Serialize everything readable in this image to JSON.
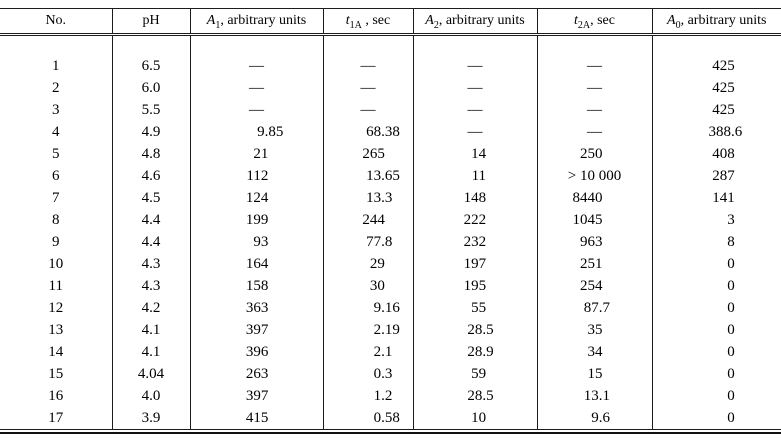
{
  "page": {
    "background": "#ffffff",
    "text_color": "#000000",
    "rule_color": "#1c1c1c"
  },
  "table": {
    "empty_marker": "—",
    "headers": [
      {
        "text": "No."
      },
      {
        "text": "pH"
      },
      {
        "var": "A",
        "sub": "1",
        "tail": ", arbitrary units"
      },
      {
        "var": "t",
        "sub": "1A",
        "tail": " , sec"
      },
      {
        "var": "A",
        "sub": "2",
        "tail": ", arbitrary units"
      },
      {
        "var": "t",
        "sub": "2A",
        "tail": ", sec"
      },
      {
        "var": "A",
        "sub": "0",
        "tail": ", arbitrary units"
      }
    ],
    "rows": [
      [
        "1",
        "6.5",
        "—",
        "—",
        "—",
        "—",
        "425"
      ],
      [
        "2",
        "6.0",
        "—",
        "—",
        "—",
        "—",
        "425"
      ],
      [
        "3",
        "5.5",
        "—",
        "—",
        "—",
        "—",
        "425"
      ],
      [
        "4",
        "4.9",
        "9.85",
        "68.38",
        "—",
        "—",
        "388.6"
      ],
      [
        "5",
        "4.8",
        "21",
        "265",
        "14",
        "250",
        "408"
      ],
      [
        "6",
        "4.6",
        "112",
        "13.65",
        "11",
        "> 10 000",
        "287"
      ],
      [
        "7",
        "4.5",
        "124",
        "13.3",
        "148",
        "8440",
        "141"
      ],
      [
        "8",
        "4.4",
        "199",
        "244",
        "222",
        "1045",
        "3"
      ],
      [
        "9",
        "4.4",
        "93",
        "77.8",
        "232",
        "963",
        "8"
      ],
      [
        "10",
        "4.3",
        "164",
        "29",
        "197",
        "251",
        "0"
      ],
      [
        "11",
        "4.3",
        "158",
        "30",
        "195",
        "254",
        "0"
      ],
      [
        "12",
        "4.2",
        "363",
        "9.16",
        "55",
        "87.7",
        "0"
      ],
      [
        "13",
        "4.1",
        "397",
        "2.19",
        "28.5",
        "35",
        "0"
      ],
      [
        "14",
        "4.1",
        "396",
        "2.1",
        "28.9",
        "34",
        "0"
      ],
      [
        "15",
        "4.04",
        "263",
        "0.3",
        "59",
        "15",
        "0"
      ],
      [
        "16",
        "4.0",
        "397",
        "1.2",
        "28.5",
        "13.1",
        "0"
      ],
      [
        "17",
        "3.9",
        "415",
        "0.58",
        "10",
        "9.6",
        "0"
      ]
    ]
  }
}
